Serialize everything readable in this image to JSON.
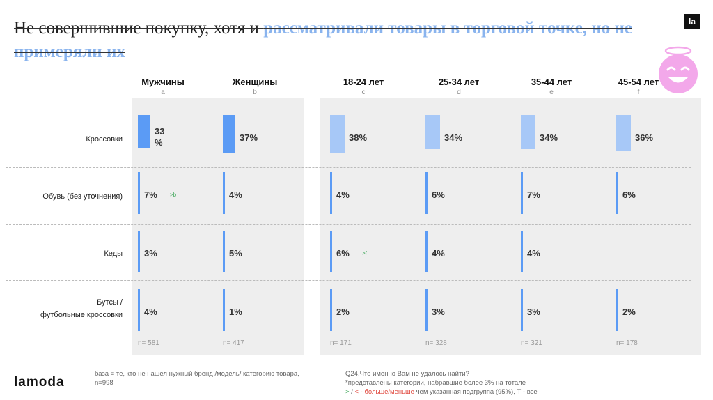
{
  "title": {
    "part1": "Не совершившие покупку, хотя и ",
    "part2": "рассматривали товары в торговой точке, но не примеряли их"
  },
  "logo_badge": "la",
  "brand": "lamoda",
  "colors": {
    "gender_bar": "#5b9bf5",
    "age_bar": "#a7c8f7",
    "thin_bar": "#5b9bf5",
    "sig_green": "#3fa85a",
    "sig_red": "#e0493f",
    "panel_bg": "#eeeeee",
    "title_highlight": "#8ab4ee",
    "smiley": "#f3a8ea"
  },
  "icons": {
    "smiley": "smiley-halo-icon"
  },
  "chart_data": {
    "type": "bar",
    "title": "Не совершившие покупку, хотя и рассматривали товары в торговой точке, но не примеряли их",
    "unit": "%",
    "columns": [
      {
        "id": "a",
        "name": "Мужчины",
        "letter": "a",
        "group": "gender",
        "n_label": "n= 581"
      },
      {
        "id": "b",
        "name": "Женщины",
        "letter": "b",
        "group": "gender",
        "n_label": "n= 417"
      },
      {
        "id": "c",
        "name": "18-24 лет",
        "letter": "c",
        "group": "age",
        "n_label": "n= 171"
      },
      {
        "id": "d",
        "name": "25-34 лет",
        "letter": "d",
        "group": "age",
        "n_label": "n= 328"
      },
      {
        "id": "e",
        "name": "35-44 лет",
        "letter": "e",
        "group": "age",
        "n_label": "n= 321"
      },
      {
        "id": "f",
        "name": "45-54 лет",
        "letter": "f",
        "group": "age",
        "n_label": "n= 178"
      }
    ],
    "categories": [
      {
        "label": [
          "Кроссовки"
        ],
        "values": [
          33,
          37,
          38,
          34,
          34,
          36
        ],
        "value_labels": [
          "33\n%",
          "37%",
          "38%",
          "34%",
          "34%",
          "36%"
        ],
        "sig": [
          "",
          "",
          "",
          "",
          "",
          ""
        ]
      },
      {
        "label": [
          "Обувь (без уточнения)"
        ],
        "values": [
          7,
          4,
          4,
          6,
          7,
          6
        ],
        "value_labels": [
          "7%",
          "4%",
          "4%",
          "6%",
          "7%",
          "6%"
        ],
        "sig": [
          ">b",
          "",
          "",
          "",
          "",
          ""
        ]
      },
      {
        "label": [
          "Кеды"
        ],
        "values": [
          3,
          5,
          6,
          4,
          4,
          null
        ],
        "value_labels": [
          "3%",
          "5%",
          "6%",
          "4%",
          "4%",
          ""
        ],
        "sig": [
          "",
          "",
          ">f",
          "",
          "",
          ""
        ]
      },
      {
        "label": [
          "Бутсы /",
          "футбольные кроссовки"
        ],
        "values": [
          4,
          1,
          2,
          3,
          3,
          2
        ],
        "value_labels": [
          "4%",
          "1%",
          "2%",
          "3%",
          "3%",
          "2%"
        ],
        "sig": [
          "",
          "",
          "",
          "",
          "",
          ""
        ]
      }
    ]
  },
  "footer": {
    "base": [
      "база = те, кто не нашел нужный бренд /модель/ категорию товара,",
      "n=998"
    ],
    "question": "Q24.Что именно Вам не удалось найти?",
    "note": "*представлены категории, набравшие более 3% на тотале",
    "legend_sym": ">",
    "legend_sep": " / ",
    "legend_lt": "< - больше/",
    "legend_less": "меньше",
    "legend_rest": " чем указанная подгруппа (95%), Т - все"
  }
}
